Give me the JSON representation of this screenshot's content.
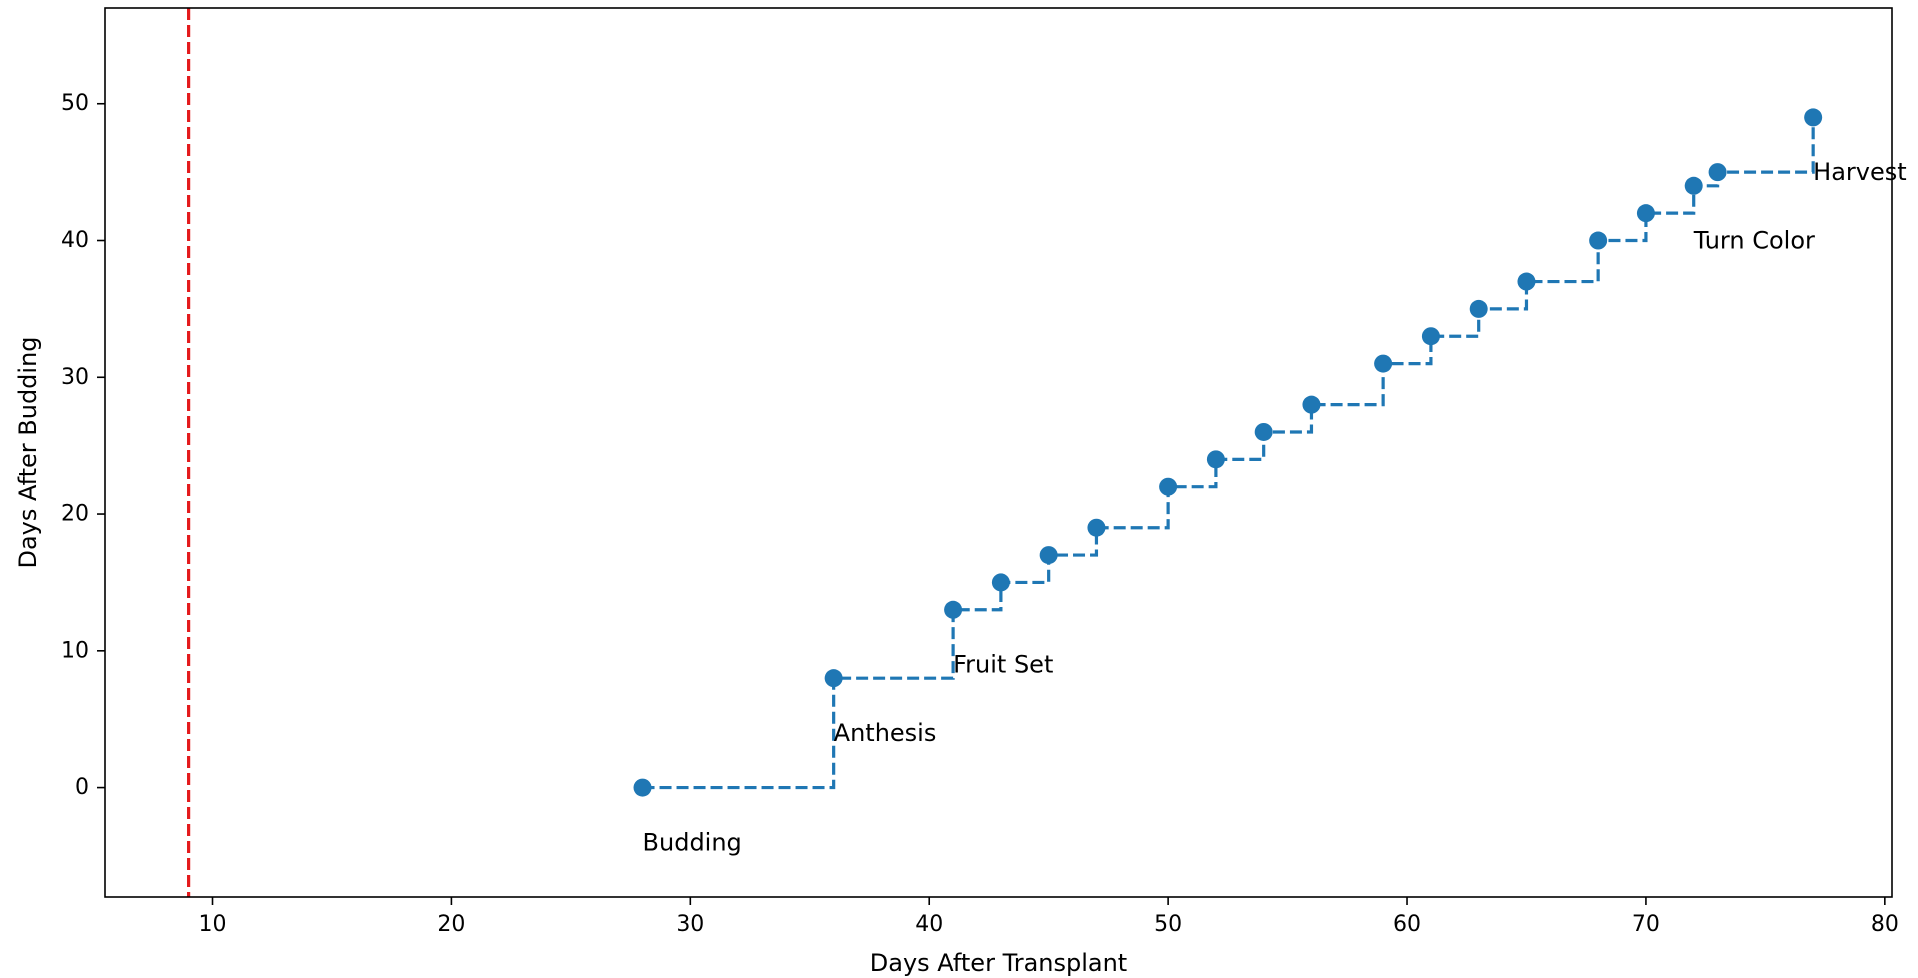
{
  "chart_data": {
    "type": "line",
    "title": "",
    "xlabel": "Days After Transplant",
    "ylabel": "Days After Budding",
    "xlim": [
      5.5,
      80.3
    ],
    "ylim": [
      -8,
      57
    ],
    "xticks": [
      10,
      20,
      30,
      40,
      50,
      60,
      70,
      80
    ],
    "yticks": [
      0,
      10,
      20,
      30,
      40,
      50
    ],
    "grid": false,
    "legend": "none",
    "reference_line": {
      "x": 9,
      "color": "#e41a1c",
      "style": "dashed"
    },
    "series": [
      {
        "color": "#1f77b4",
        "style": "step-post dashed with markers",
        "x": [
          28,
          36,
          41,
          43,
          45,
          47,
          50,
          52,
          54,
          56,
          59,
          61,
          63,
          65,
          68,
          70,
          72,
          73,
          77
        ],
        "y": [
          0,
          8,
          13,
          15,
          17,
          19,
          22,
          24,
          26,
          28,
          31,
          33,
          35,
          37,
          40,
          42,
          44,
          45,
          49
        ]
      }
    ],
    "annotations": [
      {
        "text": "Budding",
        "x": 28,
        "y": -4
      },
      {
        "text": "Anthesis",
        "x": 36,
        "y": 4
      },
      {
        "text": "Fruit Set",
        "x": 41,
        "y": 9
      },
      {
        "text": "Turn Color",
        "x": 72,
        "y": 40
      },
      {
        "text": "Harvest",
        "x": 77,
        "y": 45
      }
    ]
  }
}
